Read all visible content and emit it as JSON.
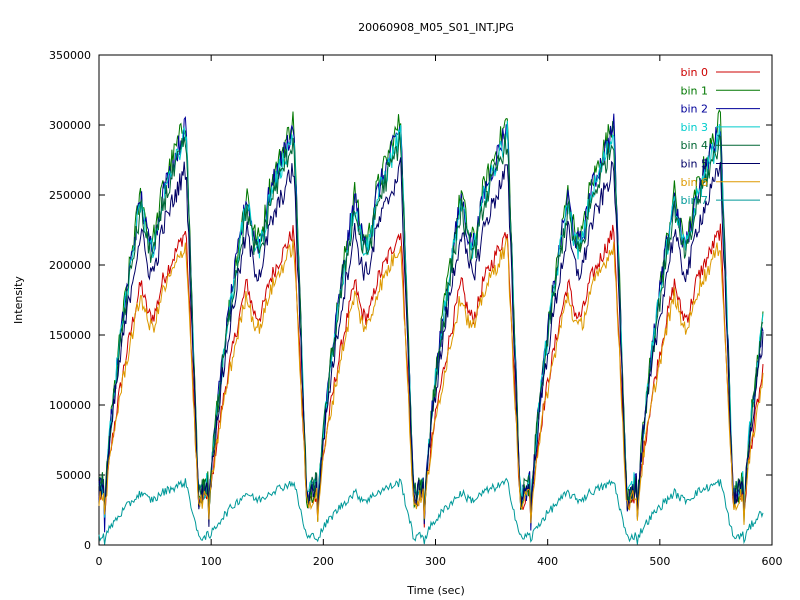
{
  "chart_data": {
    "type": "line",
    "title": "20060908_M05_S01_INT.JPG",
    "xlabel": "Time (sec)",
    "ylabel": "Intensity",
    "xlim": [
      0,
      600
    ],
    "ylim": [
      0,
      350000
    ],
    "xticks": [
      0,
      100,
      200,
      300,
      400,
      500,
      600
    ],
    "yticks": [
      0,
      50000,
      100000,
      150000,
      200000,
      250000,
      300000,
      350000
    ],
    "xtick_labels": [
      "0",
      "100",
      "200",
      "300",
      "400",
      "500",
      "600"
    ],
    "ytick_labels": [
      "0",
      "50000",
      "100000",
      "150000",
      "200000",
      "250000",
      "300000",
      "350000"
    ],
    "grid": false,
    "legend_position": "top-right",
    "cycle_period_sec": 96,
    "cycle_minima_sec": [
      5,
      98,
      195,
      290,
      385,
      480,
      575
    ],
    "series": [
      {
        "name": "bin 0",
        "color": "#cc0000",
        "peak": 225000,
        "trough": 18000,
        "noise": 6000
      },
      {
        "name": "bin 1",
        "color": "#007700",
        "peak": 305000,
        "trough": 18000,
        "noise": 9000
      },
      {
        "name": "bin 2",
        "color": "#000099",
        "peak": 300000,
        "trough": 18000,
        "noise": 9000
      },
      {
        "name": "bin 3",
        "color": "#00cccc",
        "peak": 295000,
        "trough": 20000,
        "noise": 9000
      },
      {
        "name": "bin 4",
        "color": "#006633",
        "peak": 290000,
        "trough": 20000,
        "noise": 9000
      },
      {
        "name": "bin 5",
        "color": "#000066",
        "peak": 270000,
        "trough": 20000,
        "noise": 8000
      },
      {
        "name": "bin 6",
        "color": "#dd9900",
        "peak": 215000,
        "trough": 18000,
        "noise": 6000
      },
      {
        "name": "bin 7",
        "color": "#009999",
        "peak": 45000,
        "trough": 3000,
        "noise": 3000
      }
    ]
  }
}
